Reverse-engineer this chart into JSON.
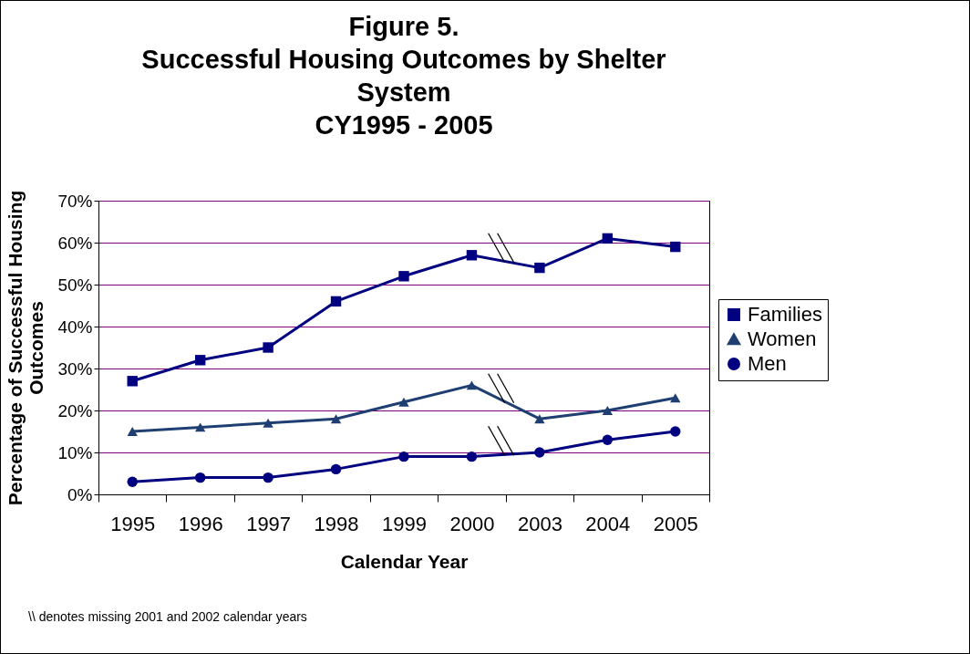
{
  "chart_data": {
    "type": "line",
    "title": "Figure 5.\nSuccessful Housing Outcomes by Shelter\nSystem\nCY1995 - 2005",
    "xlabel": "Calendar Year",
    "ylabel": "Percentage of Successful Housing Outcomes",
    "categories": [
      "1995",
      "1996",
      "1997",
      "1998",
      "1999",
      "2000",
      "2003",
      "2004",
      "2005"
    ],
    "series": [
      {
        "name": "Families",
        "color": "#000080",
        "marker": "square",
        "values": [
          27,
          32,
          35,
          46,
          52,
          57,
          54,
          61,
          59
        ]
      },
      {
        "name": "Women",
        "color": "#1f3f73",
        "marker": "triangle",
        "values": [
          15,
          16,
          17,
          18,
          22,
          26,
          18,
          20,
          23
        ]
      },
      {
        "name": "Men",
        "color": "#000080",
        "marker": "circle",
        "values": [
          3,
          4,
          4,
          6,
          9,
          9,
          10,
          13,
          15
        ]
      }
    ],
    "ylim": [
      0,
      70
    ],
    "yticks": [
      {
        "value": 0,
        "label": "0%"
      },
      {
        "value": 10,
        "label": "10%"
      },
      {
        "value": 20,
        "label": "20%"
      },
      {
        "value": 30,
        "label": "30%"
      },
      {
        "value": 40,
        "label": "40%"
      },
      {
        "value": 50,
        "label": "50%"
      },
      {
        "value": 60,
        "label": "60%"
      },
      {
        "value": 70,
        "label": "70%"
      }
    ],
    "grid": "y",
    "legend": "right",
    "annotations": [
      "\\\\ denotes missing 2001 and 2002 calendar years"
    ]
  }
}
